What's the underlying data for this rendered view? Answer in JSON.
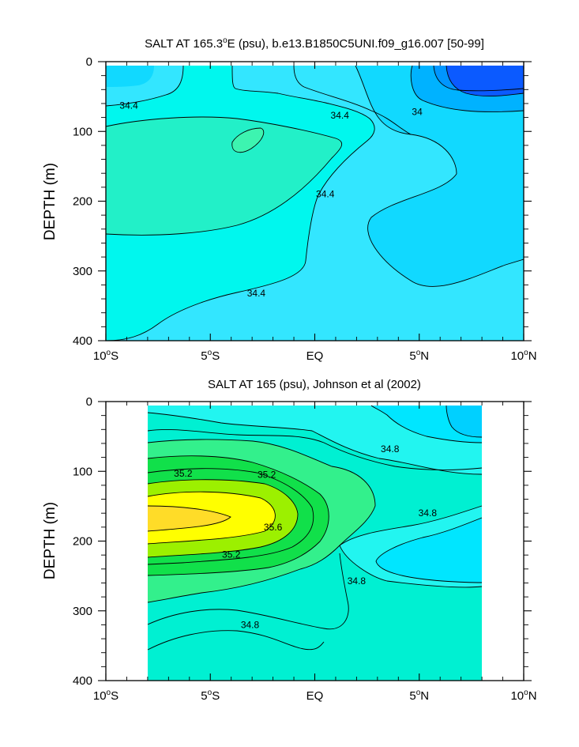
{
  "chart_data": [
    {
      "type": "contour",
      "title": "SALT AT 165.3°E (psu), b.e13.B1850C5UNI.f09_g16.007 [50-99]",
      "title_main": "SALT AT 165.3",
      "title_deg": "o",
      "title_rest": "E (psu), b.e13.B1850C5UNI.f09_g16.007 [50-99]",
      "ylabel": "DEPTH (m)",
      "xlim": [
        -10,
        10
      ],
      "ylim": [
        400,
        0
      ],
      "y_reversed": true,
      "xticks": [
        {
          "value": -10,
          "num": "10",
          "hemi": "S"
        },
        {
          "value": -5,
          "num": "5",
          "hemi": "S"
        },
        {
          "value": 0,
          "num": "EQ",
          "hemi": ""
        },
        {
          "value": 5,
          "num": "5",
          "hemi": "N"
        },
        {
          "value": 10,
          "num": "10",
          "hemi": "N"
        }
      ],
      "yticks": [
        0,
        100,
        200,
        300,
        400
      ],
      "data_extent_x": [
        -10,
        10
      ],
      "data_extent_y": [
        5,
        400
      ],
      "contour_labels": [
        {
          "text": "34.4",
          "x": -8.9,
          "y": 63
        },
        {
          "text": "34.4",
          "x": 1.2,
          "y": 77
        },
        {
          "text": "34",
          "x": 4.9,
          "y": 72
        },
        {
          "text": "34.4",
          "x": 0.5,
          "y": 190
        },
        {
          "text": "34.4",
          "x": -2.8,
          "y": 332
        }
      ]
    },
    {
      "type": "contour",
      "title": "SALT AT 165 (psu), Johnson et al (2002)",
      "ylabel": "DEPTH (m)",
      "xlim": [
        -10,
        10
      ],
      "ylim": [
        400,
        0
      ],
      "y_reversed": true,
      "xticks": [
        {
          "value": -10,
          "num": "10",
          "hemi": "S"
        },
        {
          "value": -5,
          "num": "5",
          "hemi": "S"
        },
        {
          "value": 0,
          "num": "EQ",
          "hemi": ""
        },
        {
          "value": 5,
          "num": "5",
          "hemi": "N"
        },
        {
          "value": 10,
          "num": "10",
          "hemi": "N"
        }
      ],
      "yticks": [
        0,
        100,
        200,
        300,
        400
      ],
      "data_extent_x": [
        -8,
        8
      ],
      "data_extent_y": [
        5,
        400
      ],
      "contour_labels": [
        {
          "text": "35.2",
          "x": -6.3,
          "y": 103
        },
        {
          "text": "35.2",
          "x": -2.3,
          "y": 105
        },
        {
          "text": "34.8",
          "x": 3.6,
          "y": 68
        },
        {
          "text": "35.6",
          "x": -2.0,
          "y": 180
        },
        {
          "text": "34.8",
          "x": 5.4,
          "y": 160
        },
        {
          "text": "35.2",
          "x": -4.0,
          "y": 219
        },
        {
          "text": "34.8",
          "x": 2.0,
          "y": 257
        },
        {
          "text": "34.8",
          "x": -3.1,
          "y": 320
        }
      ]
    }
  ]
}
